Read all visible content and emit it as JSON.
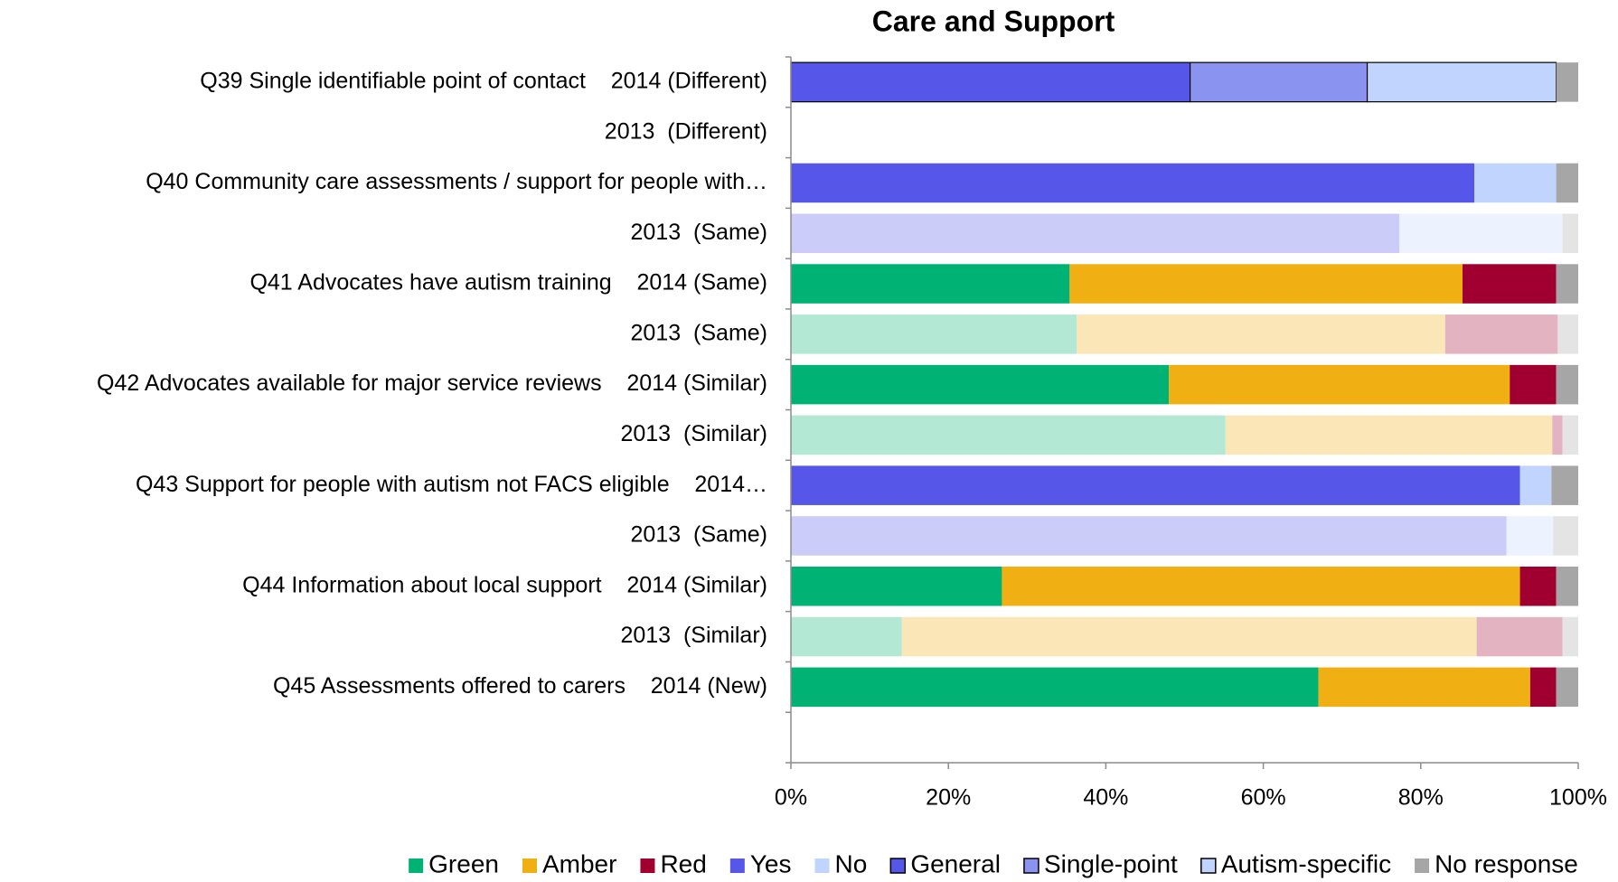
{
  "chart_data": {
    "type": "stacked_barh",
    "title": "Care and Support",
    "categories": [
      "Q39 Single identifiable point of contact    2014 (Different)",
      "2013  (Different)",
      "Q40 Community care assessments / support for people with…",
      "2013  (Same)",
      "Q41 Advocates have autism training    2014 (Same)",
      "2013  (Same)",
      "Q42 Advocates available for major service reviews    2014 (Similar)",
      "2013  (Similar)",
      "Q43 Support for people with autism not FACS eligible    2014…",
      "2013  (Same)",
      "Q44 Information about local support    2014 (Similar)",
      "2013  (Similar)",
      "Q45 Assessments offered to carers    2014 (New)",
      null
    ],
    "series": [
      {
        "name": "Green",
        "color": "#00b274",
        "values": [
          null,
          null,
          null,
          null,
          35.4,
          36.3,
          48.0,
          55.2,
          null,
          null,
          26.8,
          14.1,
          67.0,
          null
        ],
        "colors": [
          null,
          null,
          null,
          null,
          "#00b274",
          "#b3e8d5",
          "#00b274",
          "#b3e8d5",
          null,
          null,
          "#00b274",
          "#b3e8d5",
          "#00b274",
          null
        ]
      },
      {
        "name": "Amber",
        "color": "#f0b014",
        "values": [
          null,
          null,
          null,
          null,
          49.9,
          46.8,
          43.3,
          41.5,
          null,
          null,
          65.8,
          73.0,
          26.9,
          null
        ],
        "colors": [
          null,
          null,
          null,
          null,
          "#f0b014",
          "#fae6b7",
          "#f0b014",
          "#fae6b7",
          null,
          null,
          "#f0b014",
          "#fae6b7",
          "#f0b014",
          null
        ]
      },
      {
        "name": "Red",
        "color": "#a0002f",
        "values": [
          null,
          null,
          null,
          null,
          11.9,
          14.3,
          5.9,
          1.3,
          null,
          null,
          4.6,
          10.9,
          3.3,
          null
        ],
        "colors": [
          null,
          null,
          null,
          null,
          "#a0002f",
          "#e4b3c1",
          "#a0002f",
          "#e4b3c1",
          null,
          null,
          "#a0002f",
          "#e4b3c1",
          "#a0002f",
          null
        ]
      },
      {
        "name": "Yes",
        "color": "#5656e8",
        "values": [
          null,
          null,
          86.8,
          77.3,
          null,
          null,
          null,
          null,
          92.6,
          90.9,
          null,
          null,
          null,
          null
        ],
        "colors": [
          null,
          null,
          "#5656e8",
          "#ccccf8",
          null,
          null,
          null,
          null,
          "#5656e8",
          "#ccccf8",
          null,
          null,
          null,
          null
        ]
      },
      {
        "name": "No",
        "color": "#c0d4fd",
        "values": [
          null,
          null,
          10.4,
          20.7,
          null,
          null,
          null,
          null,
          4.0,
          5.9,
          null,
          null,
          null,
          null
        ],
        "colors": [
          null,
          null,
          "#c0d4fd",
          "#ecf2fe",
          null,
          null,
          null,
          null,
          "#c0d4fd",
          "#ecf2fe",
          null,
          null,
          null,
          null
        ]
      },
      {
        "name": "General",
        "color": "#5656e8",
        "edgecolor": "#000000",
        "values": [
          50.7,
          null,
          null,
          null,
          null,
          null,
          null,
          null,
          null,
          null,
          null,
          null,
          null,
          null
        ],
        "colors": [
          "#5656e8",
          null,
          null,
          null,
          null,
          null,
          null,
          null,
          null,
          null,
          null,
          null,
          null,
          null
        ]
      },
      {
        "name": "Single-point",
        "color": "#8a93f0",
        "edgecolor": "#000000",
        "values": [
          22.5,
          null,
          null,
          null,
          null,
          null,
          null,
          null,
          null,
          null,
          null,
          null,
          null,
          null
        ],
        "colors": [
          "#8a93f0",
          null,
          null,
          null,
          null,
          null,
          null,
          null,
          null,
          null,
          null,
          null,
          null,
          null
        ]
      },
      {
        "name": "Autism-specific",
        "color": "#c0d4fd",
        "edgecolor": "#000000",
        "values": [
          24.0,
          null,
          null,
          null,
          null,
          null,
          null,
          null,
          null,
          null,
          null,
          null,
          null,
          null
        ],
        "colors": [
          "#c0d4fd",
          null,
          null,
          null,
          null,
          null,
          null,
          null,
          null,
          null,
          null,
          null,
          null,
          null
        ]
      },
      {
        "name": "No response",
        "color": "#a6a6a6",
        "values": [
          2.8,
          null,
          2.8,
          2.0,
          2.8,
          2.6,
          2.8,
          2.0,
          3.4,
          3.2,
          2.8,
          2.0,
          2.8,
          null
        ],
        "colors": [
          "#a6a6a6",
          null,
          "#a6a6a6",
          "#e4e4e4",
          "#a6a6a6",
          "#e4e4e4",
          "#a6a6a6",
          "#e4e4e4",
          "#a6a6a6",
          "#e4e4e4",
          "#a6a6a6",
          "#e4e4e4",
          "#a6a6a6",
          null
        ]
      }
    ],
    "xlim": [
      0,
      100
    ],
    "xticks": [
      {
        "value": 0,
        "label": "0%"
      },
      {
        "value": 20,
        "label": "20%"
      },
      {
        "value": 40,
        "label": "40%"
      },
      {
        "value": 60,
        "label": "60%"
      },
      {
        "value": 80,
        "label": "80%"
      },
      {
        "value": 100,
        "label": "100%"
      }
    ],
    "grid": false,
    "legend": "bottom"
  }
}
